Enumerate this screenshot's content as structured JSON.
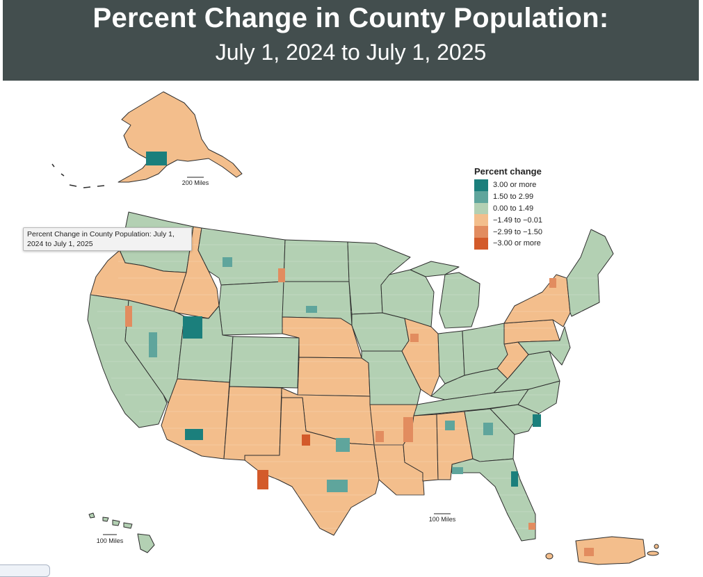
{
  "header": {
    "title": "Percent Change in County Population:",
    "subtitle": "July 1, 2024 to July 1, 2025"
  },
  "legend": {
    "title": "Percent change",
    "items": [
      {
        "label": "3.00 or more",
        "color": "#1b7f7c"
      },
      {
        "label": "1.50 to 2.99",
        "color": "#5fa59c"
      },
      {
        "label": "0.00 to 1.49",
        "color": "#b3d0b3"
      },
      {
        "label": "−1.49 to −0.01",
        "color": "#f3be8c"
      },
      {
        "label": "−2.99 to −1.50",
        "color": "#e28c5f"
      },
      {
        "label": "−3.00 or more",
        "color": "#d35a2a"
      }
    ]
  },
  "scale_bars": {
    "alaska": "200 Miles",
    "hawaii": "100 Miles",
    "puerto_rico": "100 Miles"
  },
  "tooltip": {
    "text": "Percent Change in County Population: July 1, 2024 to July 1, 2025"
  },
  "colors": {
    "header_bg": "#434e4e",
    "border": "#2c2c2c"
  }
}
